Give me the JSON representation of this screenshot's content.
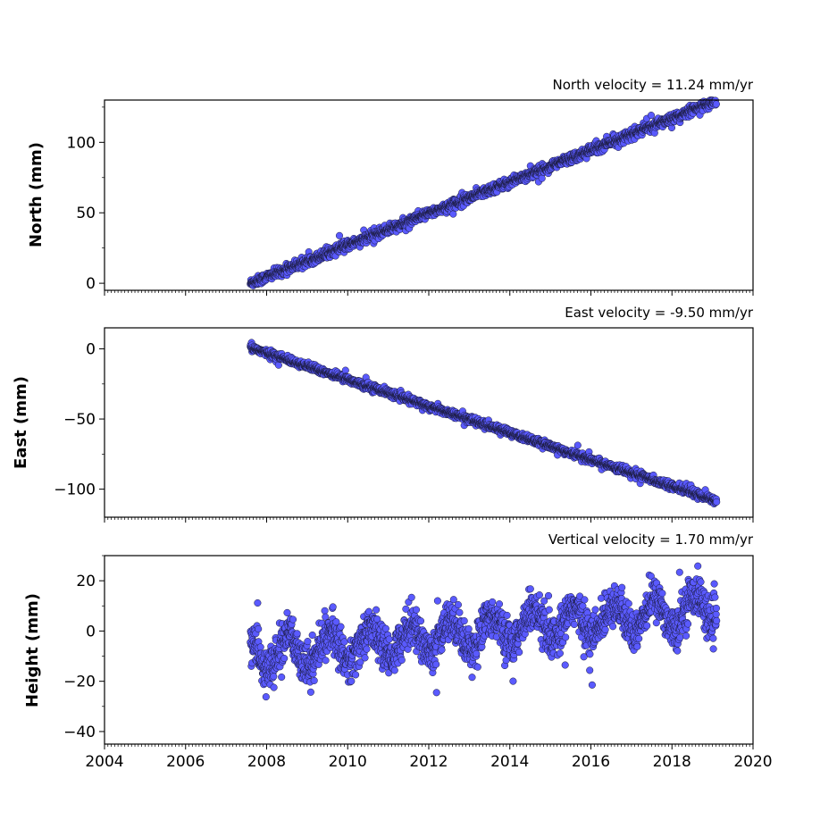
{
  "chart_data": [
    {
      "type": "scatter",
      "title": "North velocity = 11.24 mm/yr",
      "ylabel": "North (mm)",
      "xlim": [
        2004,
        2020
      ],
      "ylim": [
        -5,
        130
      ],
      "yticks": [
        0,
        50,
        100
      ],
      "xticks": [
        2004,
        2006,
        2008,
        2010,
        2012,
        2014,
        2016,
        2018,
        2020
      ],
      "show_xtick_labels": false,
      "x_start": 2007.6,
      "x_end": 2019.1,
      "trend_intercept_at_start": 0,
      "trend_slope_per_year": 11.24,
      "scatter_sd": 1.6,
      "points_per_year": 180,
      "marker_color": "#5a5aff",
      "marker_edge": "#1a1a3a"
    },
    {
      "type": "scatter",
      "title": "East velocity = -9.50 mm/yr",
      "ylabel": "East (mm)",
      "xlim": [
        2004,
        2020
      ],
      "ylim": [
        -120,
        15
      ],
      "yticks": [
        -100,
        -50,
        0
      ],
      "xticks": [
        2004,
        2006,
        2008,
        2010,
        2012,
        2014,
        2016,
        2018,
        2020
      ],
      "show_xtick_labels": false,
      "x_start": 2007.6,
      "x_end": 2019.1,
      "trend_intercept_at_start": 1,
      "trend_slope_per_year": -9.5,
      "scatter_sd": 1.2,
      "points_per_year": 180,
      "marker_color": "#5a5aff",
      "marker_edge": "#1a1a3a"
    },
    {
      "type": "scatter",
      "title": "Vertical velocity = 1.70 mm/yr",
      "ylabel": "Height (mm)",
      "xlim": [
        2004,
        2020
      ],
      "ylim": [
        -45,
        30
      ],
      "yticks": [
        -40,
        -20,
        0,
        20
      ],
      "xticks": [
        2004,
        2006,
        2008,
        2010,
        2012,
        2014,
        2016,
        2018,
        2020
      ],
      "show_xtick_labels": true,
      "x_start": 2007.6,
      "x_end": 2019.1,
      "trend_intercept_at_start": -10,
      "trend_slope_per_year": 1.7,
      "seasonal_amplitude": 6,
      "scatter_sd": 4,
      "points_per_year": 180,
      "marker_color": "#5a5aff",
      "marker_edge": "#1a1a3a"
    }
  ]
}
